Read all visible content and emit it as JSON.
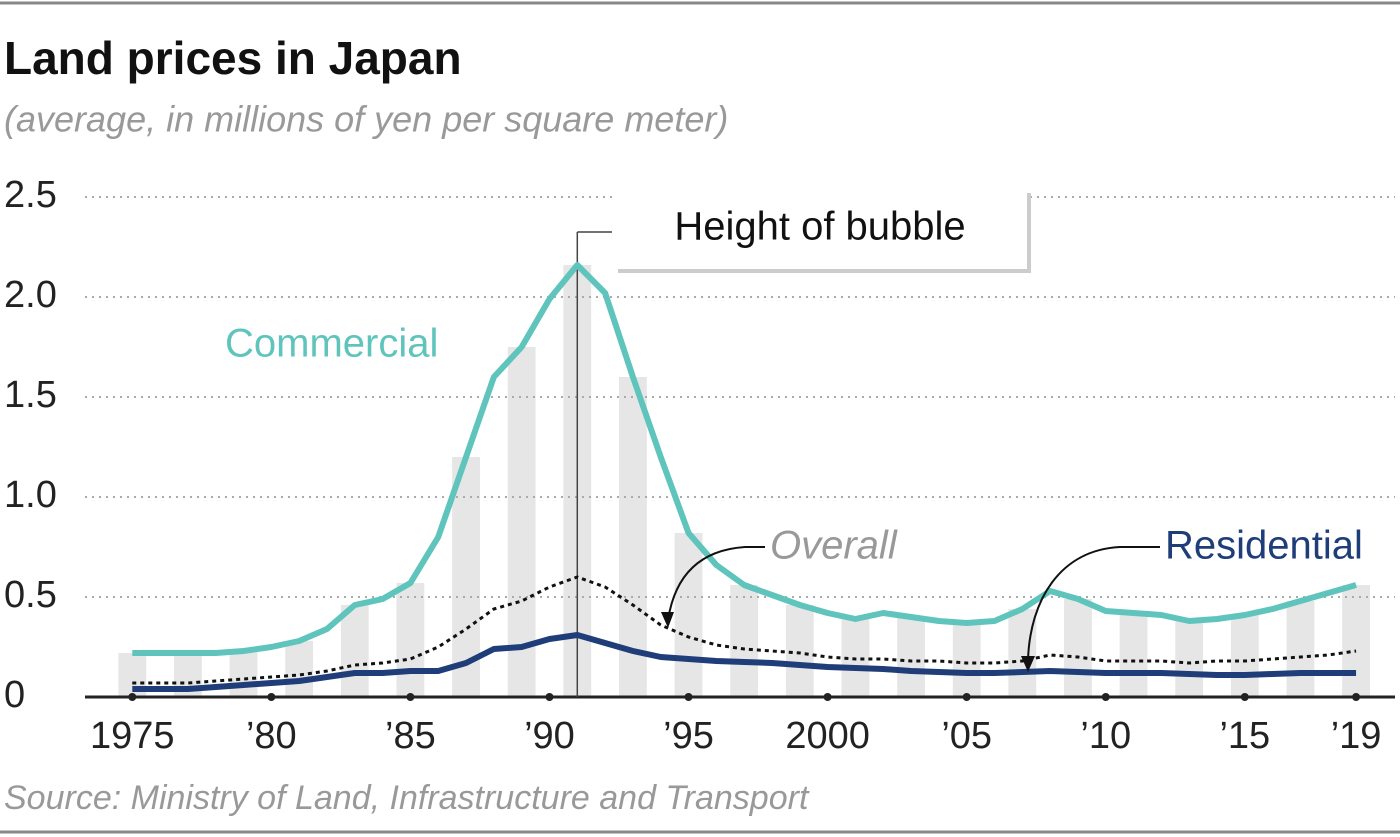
{
  "chart_data": {
    "type": "line",
    "title": "Land prices in Japan",
    "subtitle": "(average, in millions of yen per square meter)",
    "source": "Source: Ministry of Land, Infrastructure and Transport",
    "annotation": {
      "text": "Height of bubble",
      "x": 1991
    },
    "x": [
      1975,
      1976,
      1977,
      1978,
      1979,
      1980,
      1981,
      1982,
      1983,
      1984,
      1985,
      1986,
      1987,
      1988,
      1989,
      1990,
      1991,
      1992,
      1993,
      1994,
      1995,
      1996,
      1997,
      1998,
      1999,
      2000,
      2001,
      2002,
      2003,
      2004,
      2005,
      2006,
      2007,
      2008,
      2009,
      2010,
      2011,
      2012,
      2013,
      2014,
      2015,
      2016,
      2017,
      2018,
      2019
    ],
    "series": [
      {
        "name": "Commercial",
        "color": "#5fc4bc",
        "values": [
          0.22,
          0.22,
          0.22,
          0.22,
          0.23,
          0.25,
          0.28,
          0.34,
          0.46,
          0.49,
          0.57,
          0.8,
          1.2,
          1.6,
          1.75,
          1.99,
          2.16,
          2.02,
          1.6,
          1.2,
          0.82,
          0.66,
          0.56,
          0.51,
          0.46,
          0.42,
          0.39,
          0.42,
          0.4,
          0.38,
          0.37,
          0.38,
          0.44,
          0.53,
          0.49,
          0.43,
          0.42,
          0.41,
          0.38,
          0.39,
          0.41,
          0.44,
          0.48,
          0.52,
          0.56
        ]
      },
      {
        "name": "Overall",
        "color": "#111111",
        "values": [
          0.07,
          0.07,
          0.07,
          0.08,
          0.09,
          0.1,
          0.11,
          0.13,
          0.16,
          0.17,
          0.19,
          0.25,
          0.34,
          0.44,
          0.48,
          0.55,
          0.6,
          0.55,
          0.46,
          0.36,
          0.3,
          0.26,
          0.24,
          0.23,
          0.22,
          0.2,
          0.19,
          0.19,
          0.18,
          0.18,
          0.17,
          0.17,
          0.18,
          0.21,
          0.2,
          0.18,
          0.18,
          0.18,
          0.17,
          0.18,
          0.18,
          0.19,
          0.2,
          0.21,
          0.23
        ]
      },
      {
        "name": "Residential",
        "color": "#1f3d78",
        "values": [
          0.04,
          0.04,
          0.04,
          0.05,
          0.06,
          0.07,
          0.08,
          0.1,
          0.12,
          0.12,
          0.13,
          0.13,
          0.17,
          0.24,
          0.25,
          0.29,
          0.31,
          0.27,
          0.23,
          0.2,
          0.19,
          0.18,
          0.175,
          0.17,
          0.16,
          0.15,
          0.145,
          0.14,
          0.13,
          0.125,
          0.12,
          0.12,
          0.125,
          0.13,
          0.125,
          0.12,
          0.12,
          0.12,
          0.115,
          0.11,
          0.11,
          0.115,
          0.12,
          0.12,
          0.12
        ]
      }
    ],
    "xlim": [
      1973.3,
      2020.4
    ],
    "xticks": [
      1975,
      {
        "value": 1980,
        "label": "’80"
      },
      {
        "value": 1985,
        "label": "’85"
      },
      {
        "value": 1990,
        "label": "’90"
      },
      {
        "value": 1995,
        "label": "’95"
      },
      2000,
      {
        "value": 2005,
        "label": "’05"
      },
      {
        "value": 2010,
        "label": "’10"
      },
      {
        "value": 2015,
        "label": "’15"
      },
      {
        "value": 2019,
        "label": "’19"
      }
    ],
    "ylim": [
      0,
      2.5
    ],
    "yticks": [
      0,
      0.5,
      {
        "value": 1,
        "label": "1.0"
      },
      1.5,
      {
        "value": 2,
        "label": "2.0"
      },
      2.5
    ],
    "grid": true
  }
}
